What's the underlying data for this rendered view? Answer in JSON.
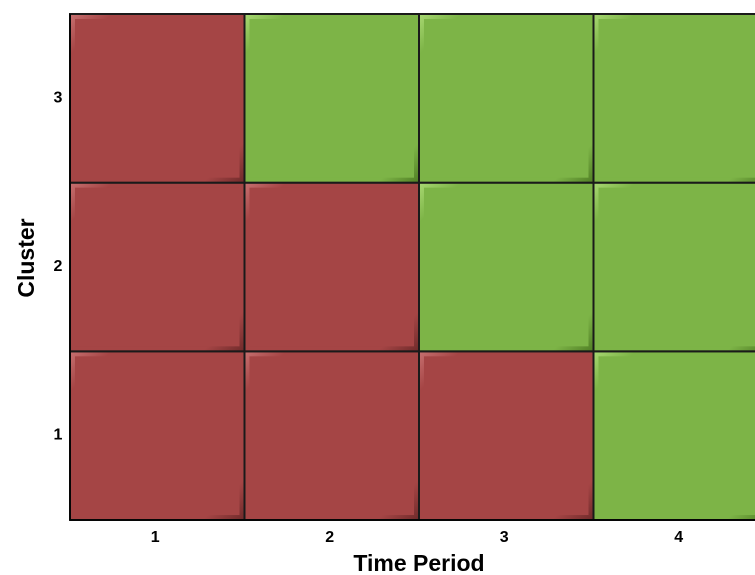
{
  "chart_data": {
    "type": "heatmap",
    "title": "",
    "xlabel": "Time Period",
    "ylabel": "Cluster",
    "x_categories": [
      "1",
      "2",
      "3",
      "4"
    ],
    "y_categories": [
      "1",
      "2",
      "3"
    ],
    "states": [
      "red",
      "green"
    ],
    "colors": {
      "red": "#a54545",
      "green": "#7db447"
    },
    "cells": [
      {
        "cluster": "1",
        "period": "1",
        "state": "red"
      },
      {
        "cluster": "1",
        "period": "2",
        "state": "red"
      },
      {
        "cluster": "1",
        "period": "3",
        "state": "red"
      },
      {
        "cluster": "1",
        "period": "4",
        "state": "green"
      },
      {
        "cluster": "2",
        "period": "1",
        "state": "red"
      },
      {
        "cluster": "2",
        "period": "2",
        "state": "red"
      },
      {
        "cluster": "2",
        "period": "3",
        "state": "green"
      },
      {
        "cluster": "2",
        "period": "4",
        "state": "green"
      },
      {
        "cluster": "3",
        "period": "1",
        "state": "red"
      },
      {
        "cluster": "3",
        "period": "2",
        "state": "green"
      },
      {
        "cluster": "3",
        "period": "3",
        "state": "green"
      },
      {
        "cluster": "3",
        "period": "4",
        "state": "green"
      }
    ]
  }
}
